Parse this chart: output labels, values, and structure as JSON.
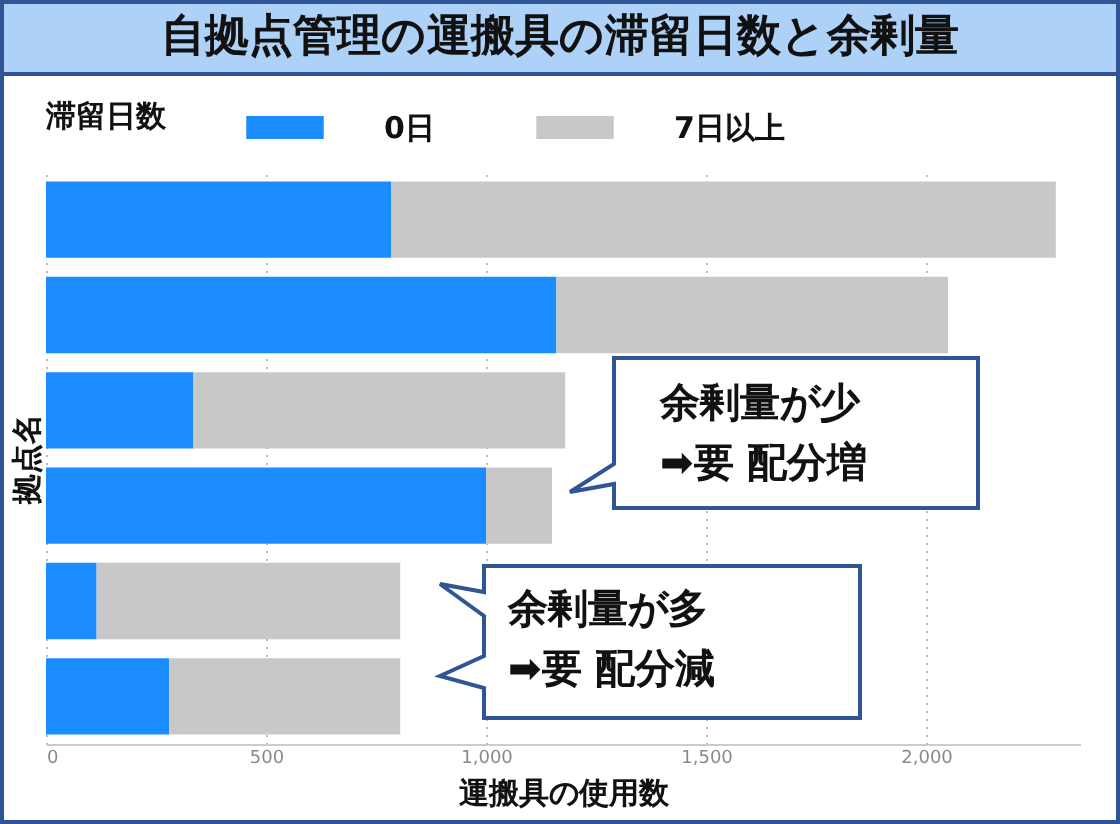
{
  "chart_data": {
    "type": "bar",
    "orientation": "horizontal",
    "stacked": true,
    "title": "自拠点管理の運搬具の滞留日数と余剰量",
    "xlabel": "運搬具の使用数",
    "ylabel": "拠点名",
    "legend_title": "滞留日数",
    "legend": "top",
    "grid": "x",
    "tick_labels": "x",
    "categories": [
      null,
      null,
      null,
      null,
      null,
      null
    ],
    "series": [
      {
        "name": "0日",
        "color": "#1a8cff",
        "values": [
          785,
          1160,
          335,
          1000,
          115,
          280
        ]
      },
      {
        "name": "7日以上",
        "color": "#c8c8c8",
        "values": [
          1510,
          890,
          845,
          150,
          690,
          525
        ]
      }
    ],
    "xlim": [
      0,
      2350
    ],
    "xticks": [
      0,
      500,
      {
        "value": 1000,
        "label": "1,000"
      },
      {
        "value": 1500,
        "label": "1,500"
      },
      {
        "value": 2000,
        "label": "2,000"
      }
    ],
    "annotations": [
      "余剰量が少\n➡要 配分増",
      "余剰量が多\n➡要 配分減"
    ]
  }
}
